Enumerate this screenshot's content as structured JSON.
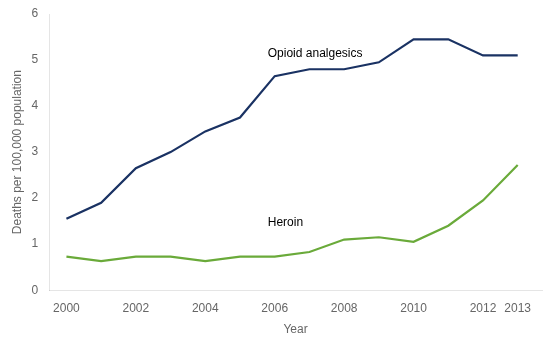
{
  "chart_data": {
    "type": "line",
    "x": [
      2000,
      2001,
      2002,
      2003,
      2004,
      2005,
      2006,
      2007,
      2008,
      2009,
      2010,
      2011,
      2012,
      2013
    ],
    "series": [
      {
        "color": "#1a3263",
        "values": [
          1.55,
          1.9,
          2.65,
          3.0,
          3.45,
          3.75,
          4.65,
          4.8,
          4.8,
          4.95,
          5.45,
          5.45,
          5.1,
          5.1
        ]
      },
      {
        "color": "#6aaa3a",
        "values": [
          0.73,
          0.63,
          0.73,
          0.73,
          0.63,
          0.73,
          0.73,
          0.83,
          1.1,
          1.15,
          1.05,
          1.4,
          1.95,
          2.72
        ]
      }
    ],
    "annotations": [
      {
        "text": "Opioid analgesics",
        "x": 2005.8,
        "y": 5.0
      },
      {
        "text": "Heroin",
        "x": 2005.8,
        "y": 1.33
      }
    ],
    "xlabel": "Year",
    "ylabel": "Deaths per 100,000 population",
    "xlim": [
      1999.5,
      2013.7
    ],
    "ylim": [
      0,
      6
    ],
    "xticks": [
      2000,
      2002,
      2004,
      2006,
      2008,
      2010,
      2012,
      2013
    ],
    "yticks": [
      0,
      1,
      2,
      3,
      4,
      5,
      6
    ],
    "grid": false
  }
}
